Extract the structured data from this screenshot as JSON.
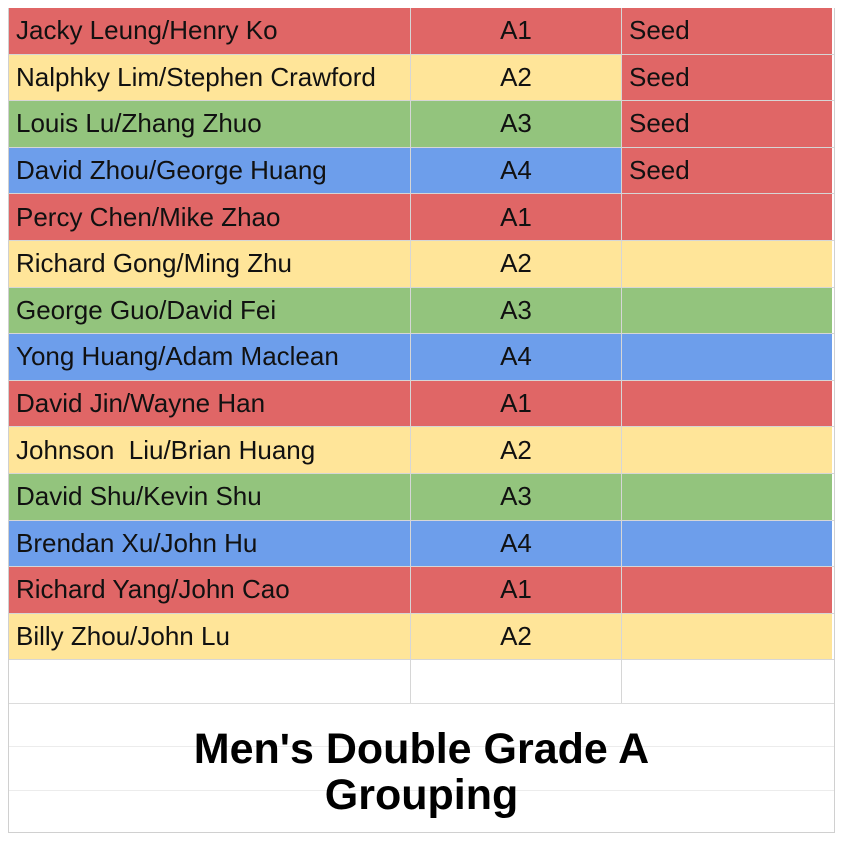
{
  "colors": {
    "red": "#e06666",
    "yellow": "#ffe599",
    "green": "#93c47d",
    "blue": "#6d9eeb"
  },
  "rows": [
    {
      "team": "Jacky Leung/Henry Ko",
      "group": "A1",
      "seed": "Seed",
      "team_color": "red",
      "group_color": "red",
      "seed_color": "red"
    },
    {
      "team": "Nalphky Lim/Stephen Crawford",
      "group": "A2",
      "seed": "Seed",
      "team_color": "yellow",
      "group_color": "yellow",
      "seed_color": "red"
    },
    {
      "team": "Louis Lu/Zhang Zhuo",
      "group": "A3",
      "seed": "Seed",
      "team_color": "green",
      "group_color": "green",
      "seed_color": "red"
    },
    {
      "team": "David Zhou/George Huang",
      "group": "A4",
      "seed": "Seed",
      "team_color": "blue",
      "group_color": "blue",
      "seed_color": "red"
    },
    {
      "team": "Percy Chen/Mike Zhao",
      "group": "A1",
      "seed": "",
      "team_color": "red",
      "group_color": "red",
      "seed_color": "red"
    },
    {
      "team": "Richard Gong/Ming Zhu",
      "group": "A2",
      "seed": "",
      "team_color": "yellow",
      "group_color": "yellow",
      "seed_color": "yellow"
    },
    {
      "team": "George Guo/David Fei",
      "group": "A3",
      "seed": "",
      "team_color": "green",
      "group_color": "green",
      "seed_color": "green"
    },
    {
      "team": "Yong Huang/Adam Maclean",
      "group": "A4",
      "seed": "",
      "team_color": "blue",
      "group_color": "blue",
      "seed_color": "blue"
    },
    {
      "team": "David Jin/Wayne Han",
      "group": "A1",
      "seed": "",
      "team_color": "red",
      "group_color": "red",
      "seed_color": "red"
    },
    {
      "team": "Johnson  Liu/Brian Huang",
      "group": "A2",
      "seed": "",
      "team_color": "yellow",
      "group_color": "yellow",
      "seed_color": "yellow"
    },
    {
      "team": "David Shu/Kevin Shu",
      "group": "A3",
      "seed": "",
      "team_color": "green",
      "group_color": "green",
      "seed_color": "green"
    },
    {
      "team": "Brendan Xu/John Hu",
      "group": "A4",
      "seed": "",
      "team_color": "blue",
      "group_color": "blue",
      "seed_color": "blue"
    },
    {
      "team": "Richard Yang/John Cao",
      "group": "A1",
      "seed": "",
      "team_color": "red",
      "group_color": "red",
      "seed_color": "red"
    },
    {
      "team": "Billy Zhou/John Lu",
      "group": "A2",
      "seed": "",
      "team_color": "yellow",
      "group_color": "yellow",
      "seed_color": "yellow"
    }
  ],
  "title": {
    "line1": "Men's Double Grade A",
    "line2": "Grouping"
  }
}
